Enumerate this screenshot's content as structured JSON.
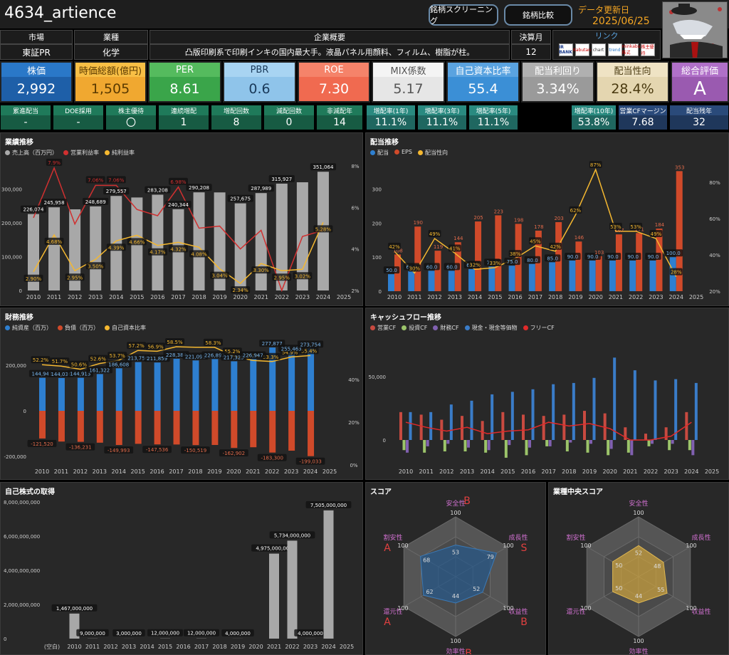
{
  "header": {
    "title": "4634_artience",
    "screening_button": "銘柄スクリーニング",
    "compare_button": "銘柄比較",
    "update_label": "データ更新日",
    "update_date": "2025/06/25"
  },
  "info": {
    "market_label": "市場",
    "market": "東証PR",
    "industry_label": "業種",
    "industry": "化学",
    "overview_label": "企業概要",
    "overview": "凸版印刷系で印刷インキの国内最大手。液晶パネル用顔料、フィルム、樹脂が柱。",
    "fiscal_label": "決算月",
    "fiscal": "12",
    "link_label": "リンク",
    "links": [
      "IR BANK",
      "Kabutan",
      "chart",
      "trend",
      "minkabu 株式",
      "株主優待"
    ]
  },
  "kpis": [
    {
      "label": "株価",
      "value": "2,992",
      "bg": "#1e5fa8",
      "lbg": "#2a78c8",
      "fg": "#ffffff"
    },
    {
      "label": "時価総額(億円)",
      "value": "1,505",
      "bg": "#f0a830",
      "lbg": "#f8bf45",
      "fg": "#5a3a00"
    },
    {
      "label": "PER",
      "value": "8.61",
      "bg": "#3aa54a",
      "lbg": "#55bb5e",
      "fg": "#ffffff"
    },
    {
      "label": "PBR",
      "value": "0.6",
      "bg": "#8fc4ea",
      "lbg": "#a8d4f2",
      "fg": "#1a3a5a"
    },
    {
      "label": "ROE",
      "value": "7.30",
      "bg": "#f06a50",
      "lbg": "#f5836a",
      "fg": "#ffffff"
    },
    {
      "label": "MIX係数",
      "value": "5.17",
      "bg": "#e6e6e6",
      "lbg": "#f4f4f4",
      "fg": "#555555"
    },
    {
      "label": "自己資本比率",
      "value": "55.4",
      "bg": "#3b8fd6",
      "lbg": "#5aa3e0",
      "fg": "#ffffff"
    },
    {
      "label": "配当利回り",
      "value": "3.34%",
      "bg": "#9a9a9a",
      "lbg": "#b0b0b0",
      "fg": "#ffffff"
    },
    {
      "label": "配当性向",
      "value": "28.4%",
      "bg": "#e4d6b0",
      "lbg": "#efe3c4",
      "fg": "#4a3a10"
    },
    {
      "label": "総合評価",
      "value": "A",
      "bg": "#9a5ab0",
      "lbg": "#b070c8",
      "fg": "#ffffff"
    }
  ],
  "minis": [
    {
      "label": "累進配当",
      "value": "-",
      "bg": "#1f7a5a"
    },
    {
      "label": "DOE採用",
      "value": "-",
      "bg": "#1f7a5a"
    },
    {
      "label": "株主優待",
      "value": "〇",
      "bg": "#1f7a5a"
    },
    {
      "label": "連続増配",
      "value": "1",
      "bg": "#1f7a5a"
    },
    {
      "label": "増配回数",
      "value": "8",
      "bg": "#1f7a5a"
    },
    {
      "label": "減配回数",
      "value": "0",
      "bg": "#1f7a5a"
    },
    {
      "label": "非減配年",
      "value": "14",
      "bg": "#1f7a5a"
    },
    {
      "label": "増配率(1年)",
      "value": "11.1%",
      "bg": "#2a8a80"
    },
    {
      "label": "増配率(3年)",
      "value": "11.1%",
      "bg": "#2a8a80"
    },
    {
      "label": "増配率(5年)",
      "value": "11.1%",
      "bg": "#2a8a80"
    },
    {
      "label": "増配率(10年)",
      "value": "53.8%",
      "bg": "#2a8a80"
    },
    {
      "label": "営業CFマージン",
      "value": "7.68",
      "bg": "#2a4a7a"
    },
    {
      "label": "配当残年",
      "value": "32",
      "bg": "#2a4a7a"
    }
  ],
  "panels": {
    "perf_title": "業績推移",
    "perf_legend": [
      "売上高（百万円）",
      "営業利益率",
      "純利益率"
    ],
    "div_title": "配当推移",
    "div_legend": [
      "配当",
      "EPS",
      "配当性向"
    ],
    "fin_title": "財務推移",
    "fin_legend": [
      "純資産（百万）",
      "負債（百万）",
      "自己資本比率"
    ],
    "cf_title": "キャッシュフロー推移",
    "cf_legend": [
      "営業CF",
      "投資CF",
      "財務CF",
      "現金・現金等価物",
      "フリーCF"
    ],
    "buyback_title": "自己株式の取得",
    "score_title": "スコア",
    "ind_score_title": "業種中央スコア"
  },
  "chart_data": [
    {
      "type": "bar",
      "name": "perf",
      "categories": [
        "2010",
        "2011",
        "2012",
        "2013",
        "2014",
        "2015",
        "2016",
        "2017",
        "2018",
        "2019",
        "2020",
        "2021",
        "2022",
        "2023",
        "2024",
        "2025"
      ],
      "series": [
        {
          "name": "売上高（百万円）",
          "values": [
            226074,
            245958,
            null,
            248689,
            279557,
            null,
            283208,
            240344,
            290208,
            null,
            257675,
            287989,
            315927,
            null,
            351064,
            null
          ],
          "labels": [
            "226,074",
            "245,958",
            "",
            "248,689",
            "279,557",
            "",
            "283,208",
            "240,344",
            "290,208",
            "",
            "257,675",
            "287,989",
            "315,927",
            "",
            "351,064",
            ""
          ],
          "heights": [
            226074,
            245958,
            240000,
            248689,
            279557,
            275000,
            283208,
            240344,
            290208,
            290000,
            257675,
            287989,
            315927,
            320000,
            351064,
            null
          ]
        },
        {
          "name": "営業利益率",
          "values": [
            5.5,
            7.9,
            5.2,
            7.06,
            7.06,
            5.9,
            5.6,
            6.98,
            5.0,
            5.1,
            4.0,
            4.9,
            2.0,
            4.6,
            4.9,
            null
          ]
        },
        {
          "name": "純利益率",
          "values": [
            2.9,
            4.68,
            2.95,
            3.5,
            4.39,
            4.66,
            4.17,
            4.32,
            4.08,
            3.04,
            2.34,
            3.3,
            2.95,
            3.02,
            5.28,
            null
          ],
          "labels": [
            "2.90%",
            "4.68%",
            "2.95%",
            "3.50%",
            "4.39%",
            "4.66%",
            "4.17%",
            "4.32%",
            "4.08%",
            "3.04%",
            "2.34%",
            "3.30%",
            "2.95%",
            "3.02%",
            "5.28%",
            ""
          ]
        }
      ],
      "op_labels": [
        "",
        "7.9%",
        "",
        "7.06%",
        "7.06%",
        "",
        "",
        "6.98%",
        "",
        "",
        "",
        "",
        "",
        "",
        ""
      ],
      "yticks": [
        "0",
        "100,000",
        "200,000",
        "300,000"
      ],
      "y2ticks": [
        "2%",
        "4%",
        "6%",
        "8%"
      ]
    },
    {
      "type": "bar",
      "name": "dividend",
      "categories": [
        "2010",
        "2011",
        "2012",
        "2013",
        "2014",
        "2015",
        "2016",
        "2017",
        "2018",
        "2019",
        "2020",
        "2021",
        "2022",
        "2023",
        "2024",
        "2025"
      ],
      "series": [
        {
          "name": "配当",
          "values": [
            50,
            60,
            60,
            60,
            65,
            72.5,
            75,
            80,
            85,
            90,
            90,
            90,
            90,
            90,
            100,
            null
          ],
          "labels": [
            "50.0",
            "60.0",
            "60.0",
            "60.0",
            "65.0",
            "72.5",
            "75.0",
            "80.0",
            "85.0",
            "90.0",
            "90.0",
            "90.0",
            "90.0",
            "90.0",
            "100.0",
            ""
          ]
        },
        {
          "name": "EPS",
          "values": [
            108,
            190,
            119,
            144,
            205,
            223,
            198,
            178,
            203,
            146,
            103,
            167,
            171,
            184,
            353,
            null
          ],
          "labels": [
            "108",
            "190",
            "119",
            "144",
            "205",
            "223",
            "198",
            "178",
            "203",
            "146",
            "103",
            "167",
            "171",
            "184",
            "353",
            ""
          ]
        },
        {
          "name": "配当性向",
          "values": [
            42,
            30,
            49,
            41,
            32,
            33,
            38,
            45,
            42,
            62,
            87,
            53,
            53,
            49,
            28,
            null
          ],
          "labels": [
            "42%",
            "30%",
            "49%",
            "41%",
            "32%",
            "33%",
            "38%",
            "45%",
            "42%",
            "62%",
            "87%",
            "53%",
            "53%",
            "49%",
            "28%",
            ""
          ]
        }
      ],
      "yticks": [
        "0",
        "100",
        "200",
        "300"
      ],
      "y2ticks": [
        "20%",
        "40%",
        "60%",
        "80%"
      ]
    },
    {
      "type": "bar",
      "name": "financial",
      "categories": [
        "2010",
        "2011",
        "2012",
        "2013",
        "2014",
        "2015",
        "2016",
        "2017",
        "2018",
        "2019",
        "2020",
        "2021",
        "2022",
        "2023",
        "2024",
        "2025"
      ],
      "series": [
        {
          "name": "純資産（百万）",
          "values": [
            144943,
            144036,
            144913,
            161322,
            186608,
            213756,
            211859,
            228384,
            221091,
            226892,
            217325,
            226947,
            277877,
            255463,
            273754,
            null
          ],
          "labels": [
            "144,943",
            "144,036",
            "144,913",
            "161,322",
            "186,608",
            "213,756",
            "211,859",
            "228,384",
            "221,091",
            "226,892",
            "217,325",
            "226,947",
            "277,877",
            "255,463",
            "273,754",
            ""
          ]
        },
        {
          "name": "負債（百万）",
          "values": [
            -121520,
            -135000,
            -136231,
            -140000,
            -149993,
            -145000,
            -147536,
            -148000,
            -150519,
            -150000,
            -162902,
            -160000,
            -183300,
            -175000,
            -199033,
            null
          ],
          "labels": [
            "-121,520",
            "",
            "-136,231",
            "",
            "-149,993",
            "",
            "-147,536",
            "",
            "-150,519",
            "",
            "-162,902",
            "",
            "-183,300",
            "",
            "-199,033",
            ""
          ]
        },
        {
          "name": "自己資本比率",
          "values": [
            52.2,
            51.7,
            50.6,
            52.6,
            53.7,
            57.2,
            56.9,
            58.5,
            58.3,
            58.3,
            55.2,
            53.7,
            53.3,
            54.9,
            55.4,
            null
          ],
          "labels": [
            "52.2%",
            "51.7%",
            "50.6%",
            "52.6%",
            "53.7%",
            "57.2%",
            "56.9%",
            "58.5%",
            "",
            "58.3%",
            "55.2%",
            "53.7%",
            "53.3%",
            "54.9%",
            "55.4%",
            ""
          ]
        }
      ],
      "yticks": [
        "-200,000",
        "0",
        "200,000"
      ],
      "y2ticks": [
        "0%",
        "20%",
        "40%"
      ]
    },
    {
      "type": "bar",
      "name": "cashflow",
      "categories": [
        "2010",
        "2011",
        "2012",
        "2013",
        "2014",
        "2015",
        "2016",
        "2017",
        "2018",
        "2019",
        "2020",
        "2021",
        "2022",
        "2023",
        "2024",
        "2025"
      ],
      "series": [
        {
          "name": "営業CF",
          "values": [
            22000,
            20000,
            16000,
            19000,
            15000,
            22000,
            20000,
            19000,
            20000,
            23000,
            21000,
            10000,
            5000,
            10000,
            22000,
            null
          ]
        },
        {
          "name": "投資CF",
          "values": [
            -8000,
            -10000,
            -9000,
            -9000,
            -10000,
            -14000,
            -12000,
            -5000,
            -9000,
            -10000,
            -12000,
            -10000,
            -5000,
            -8000,
            -8000,
            null
          ]
        },
        {
          "name": "財務CF",
          "values": [
            -10000,
            -5000,
            -3000,
            -6000,
            -8000,
            -4000,
            -6000,
            -5000,
            -2000,
            -3000,
            -7000,
            -12000,
            -3000,
            -3000,
            -12000,
            null
          ]
        },
        {
          "name": "現金・現金等価物",
          "values": [
            22000,
            22000,
            28000,
            31000,
            36000,
            38000,
            40000,
            44000,
            45000,
            49000,
            65000,
            55000,
            47000,
            48000,
            45000,
            null
          ]
        },
        {
          "name": "フリーCF",
          "values": [
            14000,
            10000,
            7000,
            10000,
            5000,
            7000,
            8000,
            14000,
            11000,
            13000,
            9000,
            0,
            0,
            3000,
            14000,
            null
          ]
        }
      ],
      "yticks": [
        "0",
        "50,000"
      ]
    },
    {
      "type": "bar",
      "name": "buyback",
      "categories": [
        "(空白)",
        "2010",
        "2011",
        "2012",
        "2013",
        "2014",
        "2015",
        "2016",
        "2017",
        "2018",
        "2019",
        "2020",
        "2021",
        "2022",
        "2023",
        "2024",
        "2025"
      ],
      "series": [
        {
          "name": "自己株式の取得",
          "values": [
            null,
            1467000000,
            9000000,
            null,
            3000000,
            null,
            12000000,
            null,
            12000000,
            null,
            4000000,
            null,
            4975000000,
            5734000000,
            4000000,
            7505000000,
            null
          ],
          "labels": [
            "",
            "1,467,000,000",
            "9,000,000",
            "",
            "3,000,000",
            "",
            "12,000,000",
            "",
            "12,000,000",
            "",
            "4,000,000",
            "",
            "4,975,000,000",
            "5,734,000,000",
            "4,000,000",
            "7,505,000,000",
            ""
          ]
        }
      ],
      "yticks": [
        "0",
        "2,000,000,000",
        "4,000,000,000",
        "6,000,000,000",
        "8,000,000,000"
      ]
    },
    {
      "type": "radar",
      "name": "score",
      "axes": [
        "安全性",
        "成長性",
        "収益性",
        "効率性",
        "還元性",
        "割安性"
      ],
      "max": 100,
      "values": [
        53,
        79,
        52,
        44,
        62,
        68
      ],
      "grades": [
        "B",
        "S",
        "B",
        "B",
        "A",
        "A"
      ]
    },
    {
      "type": "radar",
      "name": "industry_score",
      "axes": [
        "安全性",
        "成長性",
        "収益性",
        "効率性",
        "還元性",
        "割安性"
      ],
      "max": 100,
      "values": [
        52,
        48,
        55,
        44,
        50,
        50
      ]
    }
  ]
}
